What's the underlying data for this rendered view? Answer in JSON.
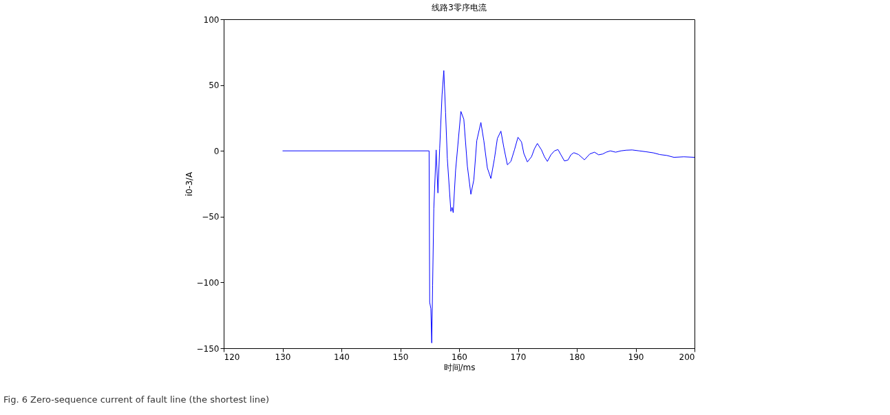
{
  "chart_data": {
    "type": "line",
    "title": "线路3零序电流",
    "xlabel": "时间/ms",
    "ylabel": "i0-3/A",
    "x": [
      130,
      154.9,
      155.0,
      155.2,
      155.35,
      155.5,
      155.7,
      156.1,
      156.4,
      156.7,
      157.1,
      157.4,
      157.7,
      158.0,
      158.6,
      158.8,
      159.0,
      159.4,
      160.3,
      160.8,
      161.4,
      162.0,
      162.5,
      163.0,
      163.7,
      164.2,
      164.8,
      165.4,
      166.0,
      166.5,
      167.1,
      167.6,
      168.2,
      168.8,
      169.4,
      170.0,
      170.6,
      171.0,
      171.6,
      172.3,
      172.8,
      173.3,
      174.0,
      174.5,
      175.0,
      175.6,
      176.2,
      176.8,
      177.3,
      177.9,
      178.5,
      179.0,
      179.5,
      180.3,
      181.3,
      182.2,
      183.0,
      183.7,
      184.4,
      185.0,
      185.7,
      186.6,
      187.5,
      188.4,
      189.4,
      190.6,
      191.8,
      193.0,
      194.1,
      195.3,
      196.5,
      198.2,
      200
    ],
    "series": [
      {
        "color": "#0000ff",
        "values": [
          0,
          0,
          -115,
          -120,
          -146,
          -102,
          -44,
          0.7,
          -32,
          2,
          42.5,
          61,
          29,
          -6,
          -46,
          -43,
          -47,
          -15,
          30,
          24,
          -11.5,
          -33,
          -22,
          7.7,
          21.6,
          7.7,
          -13,
          -21,
          -6,
          9.4,
          15,
          2.6,
          -10.6,
          -8,
          0.7,
          10.3,
          6.8,
          -2,
          -8.4,
          -4.5,
          1.6,
          5.6,
          0.7,
          -4.5,
          -8,
          -3,
          0,
          1,
          -3,
          -7.7,
          -7,
          -3,
          -1.4,
          -2.8,
          -6.8,
          -2.4,
          -1,
          -3,
          -2.4,
          -1,
          0,
          -1,
          0,
          0.5,
          0.7,
          0,
          -0.7,
          -1.5,
          -2.8,
          -3.5,
          -4.9,
          -4.5,
          -4.9
        ]
      }
    ],
    "xlim": [
      120,
      200
    ],
    "xticks": [
      120,
      130,
      140,
      150,
      160,
      170,
      180,
      190,
      200
    ],
    "ylim": [
      -150,
      100
    ],
    "yticks": [
      -150,
      -100,
      -50,
      0,
      50,
      100
    ],
    "grid": false,
    "marker": "none",
    "line_style": "solid",
    "annotations": [
      "Fig. 6 Zero-sequence current of fault line (the shortest line)"
    ]
  }
}
